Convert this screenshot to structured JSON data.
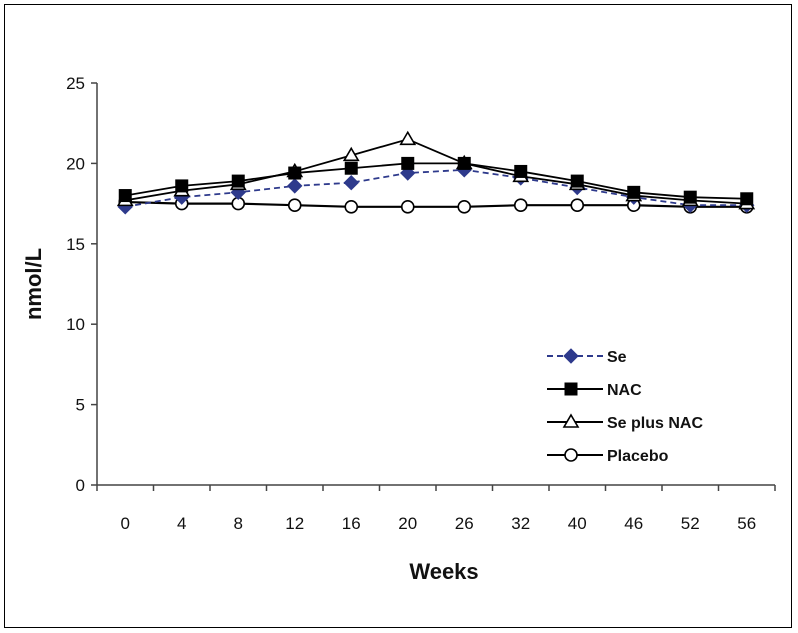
{
  "chart_data": {
    "type": "line",
    "title": "",
    "xlabel": "Weeks",
    "ylabel": "nmol/L",
    "categories": [
      "0",
      "4",
      "8",
      "12",
      "16",
      "20",
      "26",
      "32",
      "40",
      "46",
      "52",
      "56"
    ],
    "ylim": [
      0,
      25
    ],
    "yticks": [
      "0",
      "5",
      "10",
      "15",
      "20",
      "25"
    ],
    "grid": false,
    "legend_position": "right",
    "series": [
      {
        "name": "Se",
        "color": "#2e3a8c",
        "marker": "diamond-filled",
        "line_style": "dashed",
        "values": [
          17.3,
          17.9,
          18.2,
          18.6,
          18.8,
          19.4,
          19.6,
          19.1,
          18.5,
          17.9,
          17.4,
          17.4
        ]
      },
      {
        "name": "NAC",
        "color": "#000000",
        "marker": "square-filled",
        "line_style": "solid",
        "values": [
          18.0,
          18.6,
          18.9,
          19.4,
          19.7,
          20.0,
          20.0,
          19.5,
          18.9,
          18.2,
          17.9,
          17.8
        ]
      },
      {
        "name": "Se plus NAC",
        "color": "#000000",
        "marker": "triangle-open",
        "line_style": "solid",
        "values": [
          17.7,
          18.3,
          18.7,
          19.5,
          20.5,
          21.5,
          20.0,
          19.2,
          18.7,
          18.0,
          17.7,
          17.5
        ]
      },
      {
        "name": "Placebo",
        "color": "#000000",
        "marker": "circle-open",
        "line_style": "solid",
        "values": [
          17.6,
          17.5,
          17.5,
          17.4,
          17.3,
          17.3,
          17.3,
          17.4,
          17.4,
          17.4,
          17.3,
          17.3
        ]
      }
    ]
  }
}
